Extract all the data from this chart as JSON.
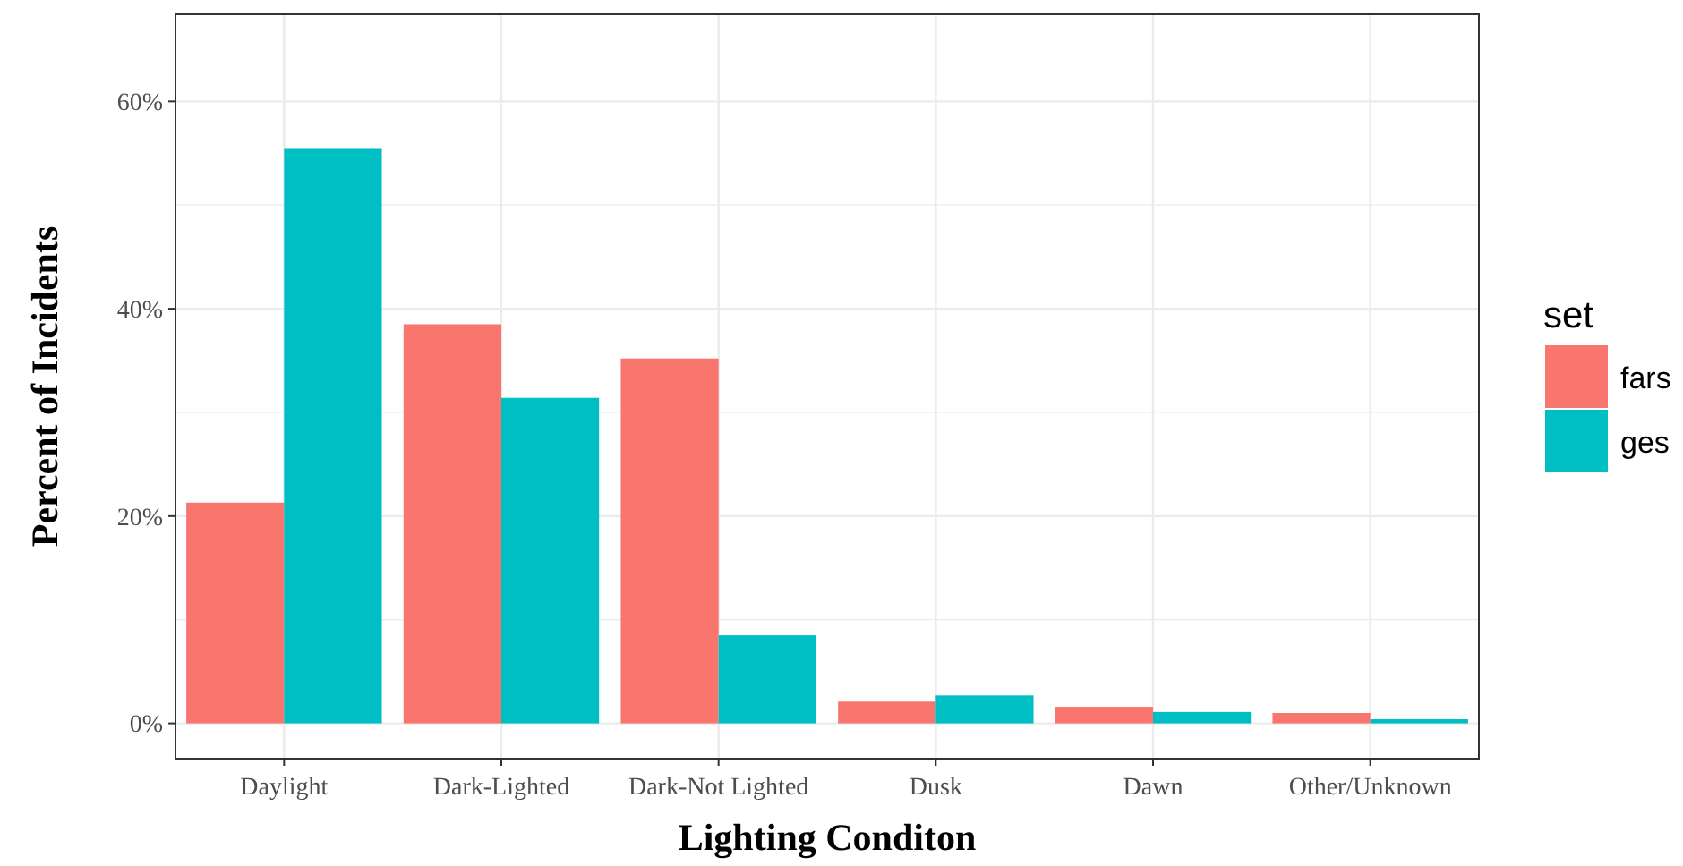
{
  "chart_data": {
    "type": "bar",
    "xlabel": "Lighting Conditon",
    "ylabel": "Percent of Incidents",
    "legend_title": "set",
    "categories": [
      "Daylight",
      "Dark-Lighted",
      "Dark-Not Lighted",
      "Dusk",
      "Dawn",
      "Other/Unknown"
    ],
    "series": [
      {
        "name": "fars",
        "color": "#f8766d",
        "values": [
          21.3,
          38.5,
          35.2,
          2.1,
          1.6,
          1.0
        ]
      },
      {
        "name": "ges",
        "color": "#00bfc4",
        "values": [
          55.5,
          31.4,
          8.5,
          2.7,
          1.1,
          0.4
        ]
      }
    ],
    "ylim": [
      -3.4,
      68.4
    ],
    "yticks": [
      {
        "value": 0,
        "label": "0%"
      },
      {
        "value": 10,
        "label": null
      },
      {
        "value": 20,
        "label": "20%"
      },
      {
        "value": 30,
        "label": null
      },
      {
        "value": 40,
        "label": "40%"
      },
      {
        "value": 50,
        "label": null
      },
      {
        "value": 60,
        "label": "60%"
      }
    ],
    "grid": true,
    "legend": "right"
  }
}
